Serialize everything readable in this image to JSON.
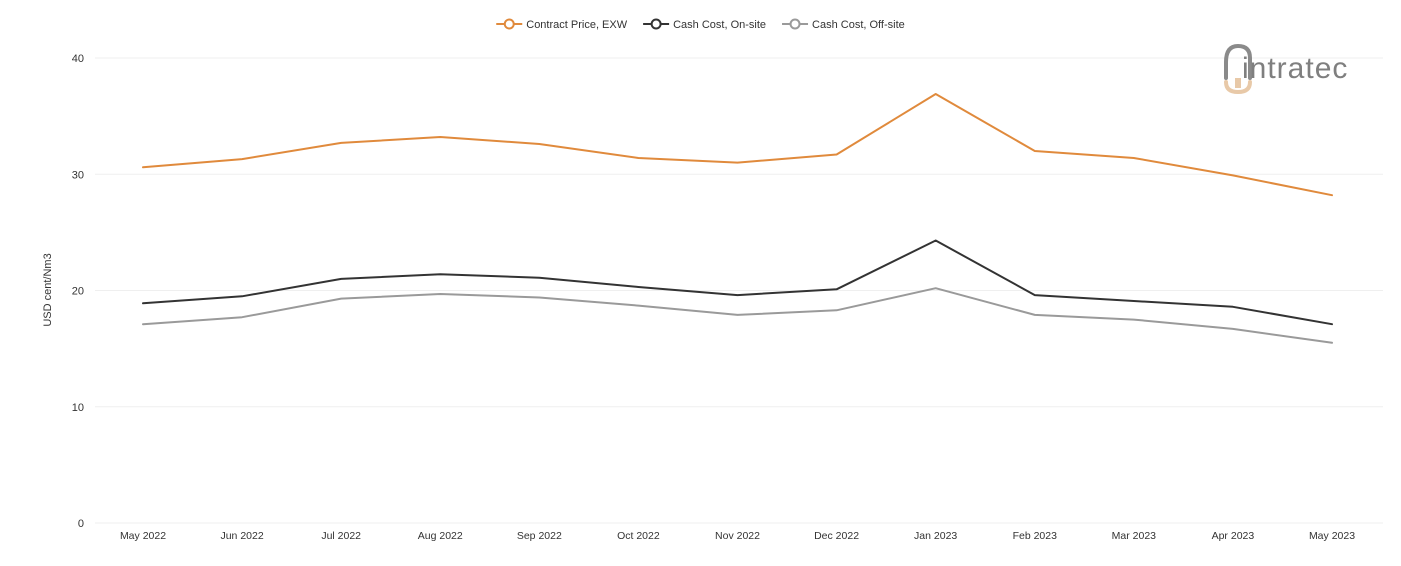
{
  "logo": {
    "text": "intratec",
    "color": "#7f7f7f",
    "accent_color": "#e8c9a8"
  },
  "chart_data": {
    "type": "line",
    "title": "",
    "xlabel": "",
    "ylabel": "USD cent/Nm3",
    "ylim": [
      0,
      40
    ],
    "y_ticks": [
      0,
      10,
      20,
      30,
      40
    ],
    "grid": true,
    "legend_position": "top-center",
    "categories": [
      "May 2022",
      "Jun 2022",
      "Jul 2022",
      "Aug 2022",
      "Sep 2022",
      "Oct 2022",
      "Nov 2022",
      "Dec 2022",
      "Jan 2023",
      "Feb 2023",
      "Mar 2023",
      "Apr 2023",
      "May 2023"
    ],
    "series": [
      {
        "name": "Contract Price, EXW",
        "color": "#e08a3c",
        "values": [
          30.6,
          31.3,
          32.7,
          33.2,
          32.6,
          31.4,
          31.0,
          31.7,
          36.9,
          32.0,
          31.4,
          29.9,
          28.2
        ]
      },
      {
        "name": "Cash Cost, On-site",
        "color": "#333333",
        "values": [
          18.9,
          19.5,
          21.0,
          21.4,
          21.1,
          20.3,
          19.6,
          20.1,
          24.3,
          19.6,
          19.1,
          18.6,
          17.1
        ]
      },
      {
        "name": "Cash Cost, Off-site",
        "color": "#9a9a9a",
        "values": [
          17.1,
          17.7,
          19.3,
          19.7,
          19.4,
          18.7,
          17.9,
          18.3,
          20.2,
          17.9,
          17.5,
          16.7,
          15.5
        ]
      }
    ]
  }
}
